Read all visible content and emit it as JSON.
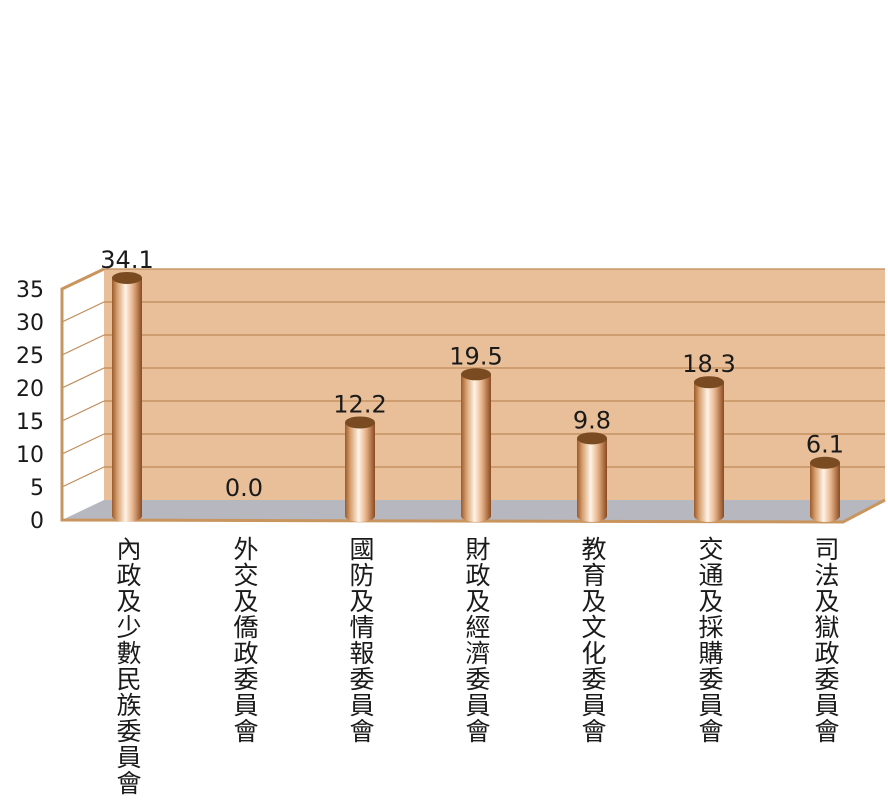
{
  "chart_data": {
    "type": "bar",
    "categories": [
      "內政及少數民族委員會",
      "外交及僑政委員會",
      "國防及情報委員會",
      "財政及經濟委員會",
      "教育及文化委員會",
      "交通及採購委員會",
      "司法及獄政委員會"
    ],
    "values": [
      34.1,
      0.0,
      12.2,
      19.5,
      9.8,
      18.3,
      6.1
    ],
    "value_labels": [
      "34.1",
      "0.0",
      "12.2",
      "19.5",
      "9.8",
      "18.3",
      "6.1"
    ],
    "ylim": [
      0,
      35
    ],
    "yticks": [
      "0",
      "5",
      "10",
      "15",
      "20",
      "25",
      "30",
      "35"
    ],
    "title": "",
    "xlabel": "",
    "ylabel": "",
    "grid": true,
    "colors": {
      "wall": "#e8bf98",
      "side_wall": "#ffffff",
      "floor": "#b7b7bf",
      "frame": "#c9955f",
      "gridline": "#c08a58",
      "bar_light": "#fff3e6",
      "bar_mid": "#e0a878",
      "bar_dark": "#8a4a20",
      "bar_top": "#7a4a20"
    }
  }
}
